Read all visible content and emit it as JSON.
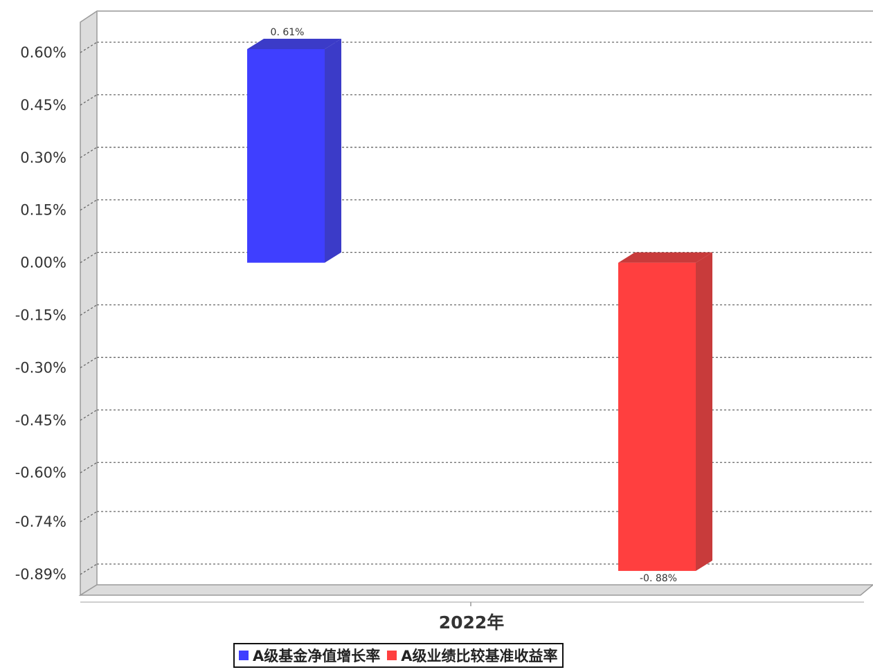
{
  "chart_data": {
    "type": "bar",
    "categories": [
      "2022年"
    ],
    "series": [
      {
        "name": "A级基金净值增长率",
        "values": [
          0.61
        ],
        "label": "0. 61%",
        "color": "#3f3fff",
        "side_color": "#3b3bc8"
      },
      {
        "name": "A级业绩比较基准收益率",
        "values": [
          -0.88
        ],
        "label": "-0. 88%",
        "color": "#ff3f3f",
        "side_color": "#c83b3b"
      }
    ],
    "y_ticks": [
      {
        "value": 0.6,
        "label": "0.60%"
      },
      {
        "value": 0.45,
        "label": "0.45%"
      },
      {
        "value": 0.3,
        "label": "0.30%"
      },
      {
        "value": 0.15,
        "label": "0.15%"
      },
      {
        "value": 0.0,
        "label": "0.00%"
      },
      {
        "value": -0.15,
        "label": "-0.15%"
      },
      {
        "value": -0.3,
        "label": "-0.30%"
      },
      {
        "value": -0.45,
        "label": "-0.45%"
      },
      {
        "value": -0.6,
        "label": "-0.60%"
      },
      {
        "value": -0.74,
        "label": "-0.74%"
      },
      {
        "value": -0.89,
        "label": "-0.89%"
      }
    ],
    "ylim": [
      -0.89,
      0.6
    ],
    "grid": true,
    "legend_position": "bottom",
    "style": "3d"
  }
}
